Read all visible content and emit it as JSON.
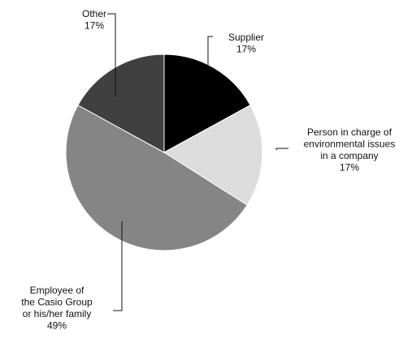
{
  "chart_data": {
    "type": "pie",
    "categories": [
      "Supplier",
      "Person in charge of environmental issues in a company",
      "Employee of the Casio Group or his/her family",
      "Other"
    ],
    "values": [
      17,
      17,
      49,
      17
    ],
    "value_labels": [
      "17%",
      "17%",
      "49%",
      "17%"
    ],
    "colors": [
      "#000000",
      "#dcdcdc",
      "#858585",
      "#404040"
    ],
    "start": "12 o'clock",
    "direction": "clockwise",
    "title": "",
    "legend": "none",
    "slice_labels": [
      {
        "lines": [
          "Supplier"
        ],
        "value": "17%"
      },
      {
        "lines": [
          "Person in charge of",
          "environmental issues",
          "in a company"
        ],
        "value": "17%"
      },
      {
        "lines": [
          "Employee of",
          "the Casio Group",
          "or his/her family"
        ],
        "value": "49%"
      },
      {
        "lines": [
          "Other"
        ],
        "value": "17%"
      }
    ]
  }
}
